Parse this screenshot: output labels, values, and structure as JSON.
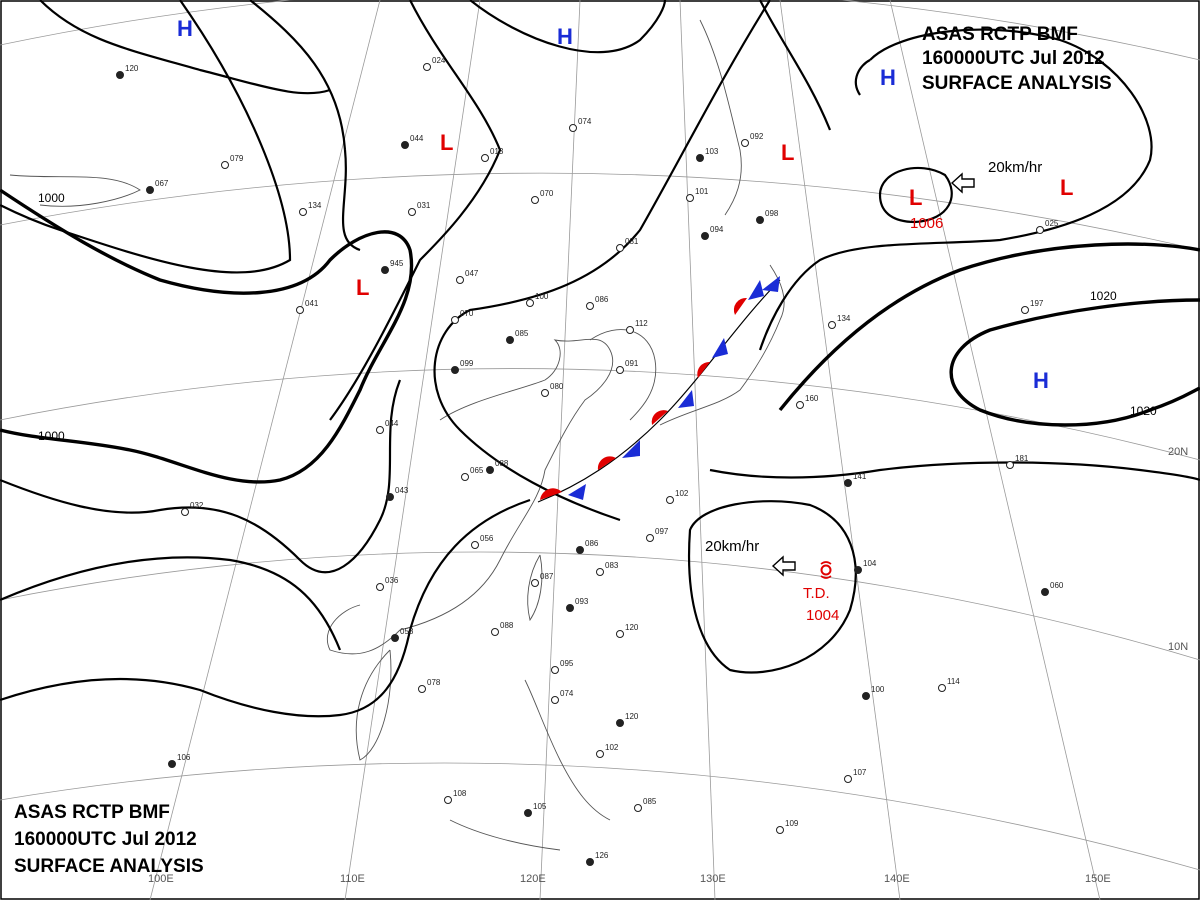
{
  "header_top_right": {
    "line1": "ASAS RCTP BMF",
    "line2": "160000UTC Jul 2012",
    "line3": "SURFACE ANALYSIS"
  },
  "header_bottom_left": {
    "line1": "ASAS RCTP BMF",
    "line2": "160000UTC Jul 2012",
    "line3": "SURFACE ANALYSIS"
  },
  "isobar_labels": [
    "1000",
    "1000",
    "1020",
    "1020"
  ],
  "pressure_centers": [
    {
      "symbol": "H"
    },
    {
      "symbol": "H"
    },
    {
      "symbol": "H"
    },
    {
      "symbol": "H"
    },
    {
      "symbol": "L"
    },
    {
      "symbol": "L"
    },
    {
      "symbol": "L"
    },
    {
      "symbol": "L"
    },
    {
      "symbol": "L",
      "value": "1006"
    }
  ],
  "tropical_depression": {
    "label": "T.D.",
    "value": "1004"
  },
  "motion_vectors": [
    "20km/hr",
    "20km/hr"
  ],
  "lat_labels": [
    "20N",
    "10N"
  ],
  "lon_labels": [
    "100E",
    "110E",
    "120E",
    "130E",
    "140E",
    "150E"
  ],
  "station_numbers": [
    "120",
    "024",
    "074",
    "044",
    "013",
    "079",
    "067",
    "134",
    "031",
    "103",
    "092",
    "101",
    "098",
    "070",
    "081",
    "094",
    "086",
    "100",
    "945",
    "047",
    "070",
    "085",
    "112",
    "091",
    "099",
    "041",
    "080",
    "088",
    "065",
    "044",
    "043",
    "102",
    "097",
    "086",
    "083",
    "087",
    "093",
    "056",
    "036",
    "058",
    "088",
    "120",
    "104",
    "160",
    "181",
    "141",
    "095",
    "074",
    "120",
    "102",
    "078",
    "100",
    "114",
    "108",
    "105",
    "085",
    "107",
    "126",
    "109",
    "032",
    "106",
    "197",
    "134",
    "060",
    "025"
  ]
}
